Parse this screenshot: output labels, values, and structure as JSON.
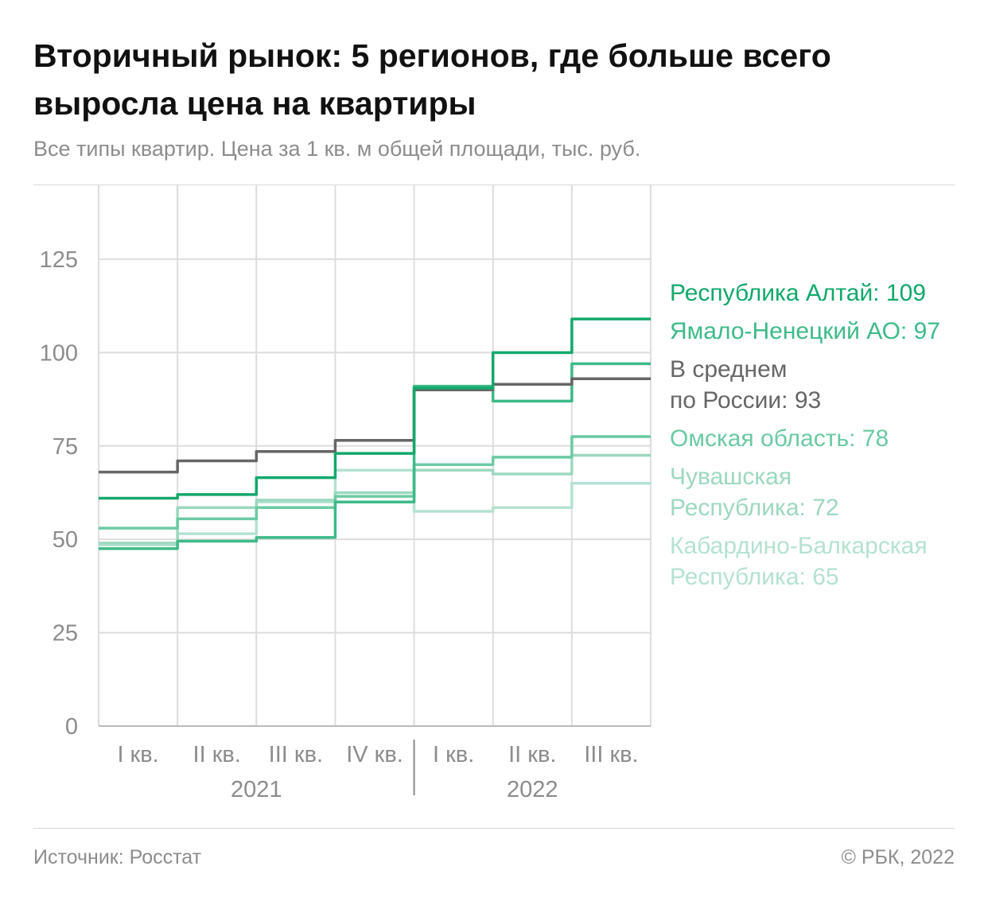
{
  "header": {
    "title": "Вторичный рынок: 5 регионов, где больше всего выросла цена на квартиры",
    "subtitle": "Все типы квартир. Цена за 1 кв. м общей площади, тыс. руб."
  },
  "footer": {
    "source": "Источник: Росстат",
    "copyright": "© РБК, 2022"
  },
  "chart_data": {
    "type": "line",
    "step": true,
    "categories": [
      "I кв.",
      "II кв.",
      "III кв.",
      "IV кв.",
      "I кв.",
      "II кв.",
      "III кв."
    ],
    "year_labels": [
      {
        "label": "2021",
        "span": [
          0,
          3
        ]
      },
      {
        "label": "2022",
        "span": [
          4,
          6
        ]
      }
    ],
    "yticks": [
      0,
      25,
      50,
      75,
      100,
      125
    ],
    "ylim": [
      0,
      145
    ],
    "grid": true,
    "series": [
      {
        "name": "Кабардино-Балкарская Республика",
        "legend_lines": [
          "Кабардино-Балкарская",
          "Республика: 65"
        ],
        "color": "#b4e2d0",
        "values": [
          48.5,
          51.5,
          60,
          68.5,
          57.5,
          58.5,
          65
        ]
      },
      {
        "name": "Чувашская Республика",
        "legend_lines": [
          "Чувашская",
          "Республика: 72"
        ],
        "color": "#9cd8bf",
        "values": [
          49,
          58.5,
          60.5,
          62.5,
          68.5,
          67.5,
          72.5
        ]
      },
      {
        "name": "Омская область",
        "legend_lines": [
          "Омская область: 78"
        ],
        "color": "#6bcaa3",
        "values": [
          53,
          55.5,
          58.5,
          61.5,
          70,
          72,
          77.5
        ]
      },
      {
        "name": "Ямало-Ненецкий АО",
        "legend_lines": [
          "Ямало-Ненецкий АО: 97"
        ],
        "color": "#3dba88",
        "values": [
          47.5,
          49.5,
          50.5,
          60,
          91,
          87,
          97
        ]
      },
      {
        "name": "В среднем по России",
        "legend_lines": [
          "В среднем",
          "по России: 93"
        ],
        "color": "#666666",
        "values": [
          68,
          71,
          73.5,
          76.5,
          90,
          91.5,
          93
        ]
      },
      {
        "name": "Республика Алтай",
        "legend_lines": [
          "Республика Алтай: 109"
        ],
        "color": "#12a86b",
        "values": [
          61,
          62,
          66.5,
          73,
          90.5,
          100,
          109
        ]
      }
    ],
    "legend_order": [
      5,
      3,
      4,
      2,
      1,
      0
    ]
  }
}
